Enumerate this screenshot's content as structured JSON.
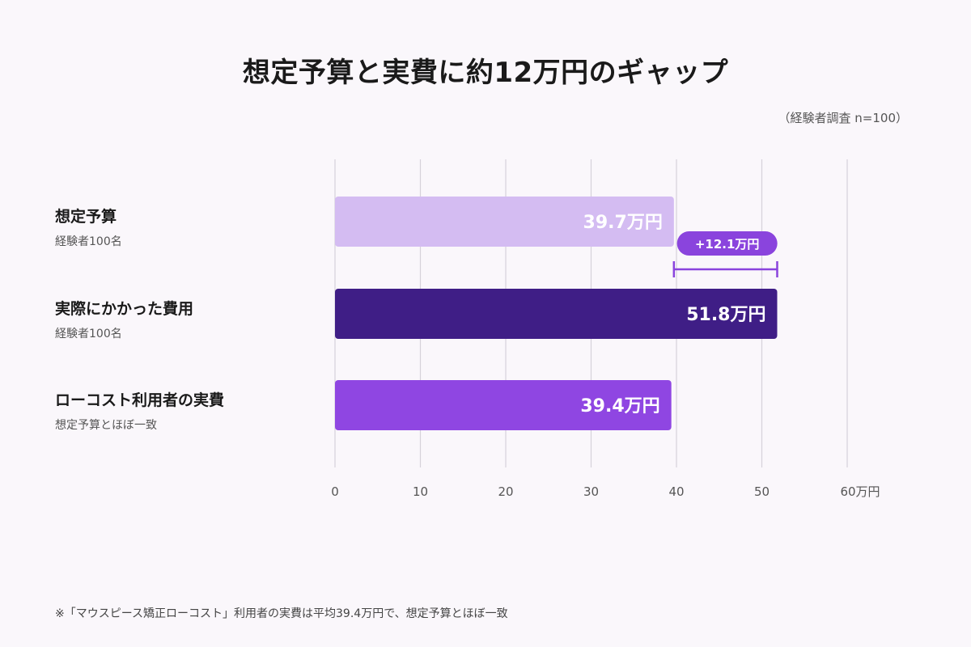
{
  "title": "想定予算と実費に約12万円のギャップ",
  "note": "（経験者調査 n=100）",
  "footnote": "※「マウスピース矯正ローコスト」利用者の実費は平均39.4万円で、想定予算とほぼ一致",
  "chart_data": {
    "type": "bar",
    "orientation": "horizontal",
    "xlim": [
      0,
      60
    ],
    "xticks": [
      0,
      10,
      20,
      30,
      40,
      50,
      60
    ],
    "xtick_labels": [
      "0",
      "10",
      "20",
      "30",
      "40",
      "50",
      "60万円"
    ],
    "grid": true,
    "bars": [
      {
        "label": "想定予算",
        "sublabel": "経験者100名",
        "value": 39.7,
        "value_label": "39.7万円",
        "color": "#d4bcf2"
      },
      {
        "label": "実際にかかった費用",
        "sublabel": "経験者100名",
        "value": 51.8,
        "value_label": "51.8万円",
        "color": "#3f1e86"
      },
      {
        "label": "ローコスト利用者の実費",
        "sublabel": "想定予算とほぼ一致",
        "value": 39.4,
        "value_label": "39.4万円",
        "color": "#8f46e2"
      }
    ],
    "annotation": {
      "label": "+12.1万円",
      "from": 39.7,
      "to": 51.8,
      "color": "#8a44dd"
    }
  }
}
